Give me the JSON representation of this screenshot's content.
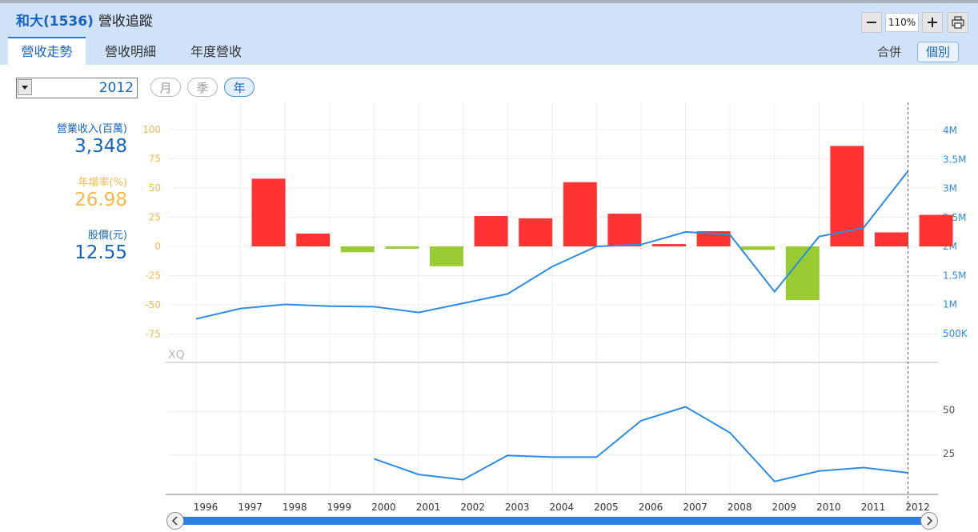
{
  "header": {
    "stock_code": "和大(1536)",
    "page_name": "營收追蹤",
    "tabs": [
      {
        "label": "營收走勢",
        "active": true
      },
      {
        "label": "營收明細",
        "active": false
      },
      {
        "label": "年度營收",
        "active": false
      }
    ],
    "zoom": "110%",
    "merge_label": "合併",
    "single_label": "個別"
  },
  "controls": {
    "year": "2012",
    "periods": [
      {
        "label": "月",
        "active": false
      },
      {
        "label": "季",
        "active": false
      },
      {
        "label": "年",
        "active": true
      }
    ]
  },
  "stats": {
    "revenue_label": "營業收入(百萬)",
    "revenue_value": "3,348",
    "growth_label": "年增率(%)",
    "growth_value": "26.98",
    "price_label": "股價(元)",
    "price_value": "12.55"
  },
  "colors": {
    "positive_bar": "#ff3333",
    "negative_bar": "#99cc33",
    "line": "#2b8ce6",
    "left_axis": "#f5b84a",
    "right_axis": "#2b8ce6"
  },
  "chart_data": [
    {
      "type": "bar",
      "categories": [
        "1996",
        "1997",
        "1998",
        "1999",
        "2000",
        "2001",
        "2002",
        "2003",
        "2004",
        "2005",
        "2006",
        "2007",
        "2008",
        "2009",
        "2010",
        "2011",
        "2012"
      ],
      "series": [
        {
          "values": [
            null,
            58,
            11,
            -5,
            -2,
            -17,
            26,
            24,
            55,
            28,
            2,
            13,
            -3,
            -46,
            86,
            12,
            27
          ],
          "axis": "left"
        },
        {
          "values": [
            0.75,
            0.93,
            1.0,
            0.97,
            0.96,
            0.86,
            1.02,
            1.18,
            1.65,
            2.0,
            2.03,
            2.25,
            2.2,
            1.22,
            2.17,
            2.32,
            3.3
          ],
          "axis": "right",
          "type": "line"
        }
      ],
      "left_axis_ticks": [
        "100",
        "75",
        "50",
        "25",
        "0",
        "-25",
        "-50",
        "-75"
      ],
      "left_ylim": [
        -100,
        100
      ],
      "right_axis_ticks": [
        "4M",
        "3.5M",
        "3M",
        "2.5M",
        "2M",
        "1.5M",
        "1M",
        "500K"
      ],
      "right_ylim": [
        0,
        4
      ],
      "watermark": "XQ",
      "grid": true,
      "cursor_at": "2012"
    },
    {
      "type": "line",
      "categories": [
        "1996",
        "1997",
        "1998",
        "1999",
        "2000",
        "2001",
        "2002",
        "2003",
        "2004",
        "2005",
        "2006",
        "2007",
        "2008",
        "2009",
        "2010",
        "2011",
        "2012"
      ],
      "series": [
        {
          "values": [
            null,
            null,
            null,
            null,
            20,
            11,
            8,
            22,
            21,
            21,
            42,
            50,
            35,
            7,
            13,
            15,
            12
          ]
        }
      ],
      "right_axis_ticks": [
        "50",
        "25"
      ],
      "grid": true
    }
  ]
}
